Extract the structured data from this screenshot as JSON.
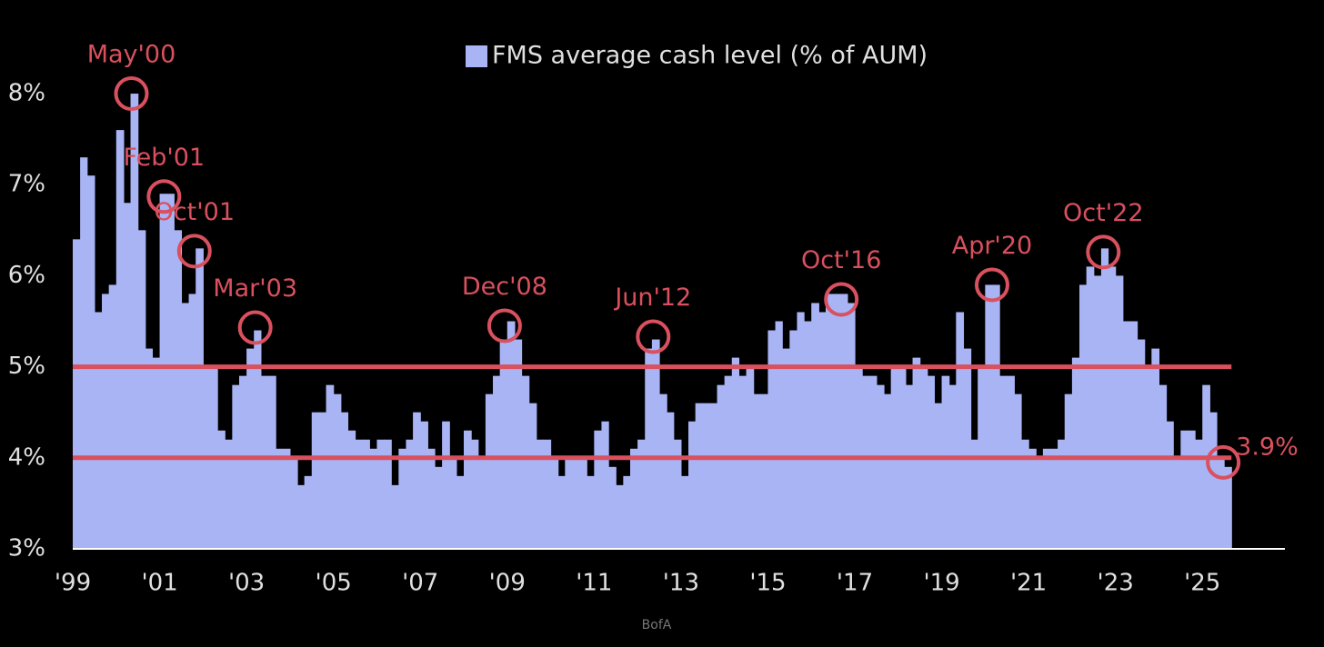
{
  "chart_data": {
    "type": "bar",
    "legend": "FMS average cash level (% of AUM)",
    "color": "#a9b4f5",
    "source": "BofA",
    "x": [
      1999,
      1999.17,
      1999.33,
      1999.5,
      1999.67,
      1999.83,
      2000,
      2000.17,
      2000.33,
      2000.5,
      2000.67,
      2000.83,
      2001,
      2001.17,
      2001.33,
      2001.5,
      2001.67,
      2001.83,
      2002,
      2002.17,
      2002.33,
      2002.5,
      2002.67,
      2002.83,
      2003,
      2003.17,
      2003.33,
      2003.5,
      2003.67,
      2003.83,
      2004,
      2004.17,
      2004.33,
      2004.5,
      2004.67,
      2004.83,
      2005,
      2005.17,
      2005.33,
      2005.5,
      2005.67,
      2005.83,
      2006,
      2006.17,
      2006.33,
      2006.5,
      2006.67,
      2006.83,
      2007,
      2007.17,
      2007.33,
      2007.5,
      2007.67,
      2007.83,
      2008,
      2008.17,
      2008.33,
      2008.5,
      2008.67,
      2008.83,
      2009,
      2009.17,
      2009.33,
      2009.5,
      2009.67,
      2009.83,
      2010,
      2010.17,
      2010.33,
      2010.5,
      2010.67,
      2010.83,
      2011,
      2011.17,
      2011.33,
      2011.5,
      2011.67,
      2011.83,
      2012,
      2012.17,
      2012.33,
      2012.5,
      2012.67,
      2012.83,
      2013,
      2013.17,
      2013.33,
      2013.5,
      2013.67,
      2013.83,
      2014,
      2014.17,
      2014.33,
      2014.5,
      2014.67,
      2014.83,
      2015,
      2015.17,
      2015.33,
      2015.5,
      2015.67,
      2015.83,
      2016,
      2016.17,
      2016.33,
      2016.5,
      2016.67,
      2016.83,
      2017,
      2017.17,
      2017.33,
      2017.5,
      2017.67,
      2017.83,
      2018,
      2018.17,
      2018.33,
      2018.5,
      2018.67,
      2018.83,
      2019,
      2019.17,
      2019.33,
      2019.5,
      2019.67,
      2019.83,
      2020,
      2020.17,
      2020.33,
      2020.5,
      2020.67,
      2020.83,
      2021,
      2021.17,
      2021.33,
      2021.5,
      2021.67,
      2021.83,
      2022,
      2022.17,
      2022.33,
      2022.5,
      2022.67,
      2022.83,
      2023,
      2023.17,
      2023.33,
      2023.5,
      2023.67,
      2023.83,
      2024,
      2024.17,
      2024.33,
      2024.5,
      2024.67,
      2024.83,
      2025,
      2025.17,
      2025.33,
      2025.5
    ],
    "values": [
      6.4,
      7.3,
      7.1,
      5.6,
      5.8,
      5.9,
      7.6,
      6.8,
      8.0,
      6.5,
      5.2,
      5.1,
      6.9,
      6.9,
      6.5,
      5.7,
      5.8,
      6.3,
      5.0,
      5.0,
      4.3,
      4.2,
      4.8,
      4.9,
      5.2,
      5.4,
      4.9,
      4.9,
      4.1,
      4.1,
      4.0,
      3.7,
      3.8,
      4.5,
      4.5,
      4.8,
      4.7,
      4.5,
      4.3,
      4.2,
      4.2,
      4.1,
      4.2,
      4.2,
      3.7,
      4.1,
      4.2,
      4.5,
      4.4,
      4.1,
      3.9,
      4.4,
      4.0,
      3.8,
      4.3,
      4.2,
      4.0,
      4.7,
      4.9,
      5.3,
      5.5,
      5.3,
      4.9,
      4.6,
      4.2,
      4.2,
      4.0,
      3.8,
      4.0,
      4.0,
      4.0,
      3.8,
      4.3,
      4.4,
      3.9,
      3.7,
      3.8,
      4.1,
      4.2,
      5.2,
      5.3,
      4.7,
      4.5,
      4.2,
      3.8,
      4.4,
      4.6,
      4.6,
      4.6,
      4.8,
      4.9,
      5.1,
      4.9,
      5.0,
      4.7,
      4.7,
      5.4,
      5.5,
      5.2,
      5.4,
      5.6,
      5.5,
      5.7,
      5.6,
      5.8,
      5.8,
      5.8,
      5.7,
      5.0,
      4.9,
      4.9,
      4.8,
      4.7,
      5.0,
      5.0,
      4.8,
      5.1,
      5.0,
      4.9,
      4.6,
      4.9,
      4.8,
      5.6,
      5.2,
      4.2,
      5.0,
      5.9,
      5.9,
      4.9,
      4.9,
      4.7,
      4.2,
      4.1,
      4.0,
      4.1,
      4.1,
      4.2,
      4.7,
      5.1,
      5.9,
      6.1,
      6.0,
      6.3,
      6.1,
      6.0,
      5.5,
      5.5,
      5.3,
      5.0,
      5.2,
      4.8,
      4.4,
      4.0,
      4.3,
      4.3,
      4.2,
      4.8,
      4.5,
      4.0,
      3.9
    ],
    "xlim": [
      1999,
      2026.9
    ],
    "ylim": [
      3,
      8.2
    ],
    "yticks": [
      {
        "value": 3,
        "label": "3%"
      },
      {
        "value": 4,
        "label": "4%"
      },
      {
        "value": 5,
        "label": "5%"
      },
      {
        "value": 6,
        "label": "6%"
      },
      {
        "value": 7,
        "label": "7%"
      },
      {
        "value": 8,
        "label": "8%"
      }
    ],
    "xticks": [
      {
        "value": 1999,
        "label": "'99"
      },
      {
        "value": 2001,
        "label": "'01"
      },
      {
        "value": 2003,
        "label": "'03"
      },
      {
        "value": 2005,
        "label": "'05"
      },
      {
        "value": 2007,
        "label": "'07"
      },
      {
        "value": 2009,
        "label": "'09"
      },
      {
        "value": 2011,
        "label": "'11"
      },
      {
        "value": 2013,
        "label": "'13"
      },
      {
        "value": 2015,
        "label": "'15"
      },
      {
        "value": 2017,
        "label": "'17"
      },
      {
        "value": 2019,
        "label": "'19"
      },
      {
        "value": 2021,
        "label": "'21"
      },
      {
        "value": 2023,
        "label": "'23"
      },
      {
        "value": 2025,
        "label": "'25"
      }
    ],
    "reference_lines": [
      5,
      4
    ],
    "reference_color": "#d9505e",
    "annotations": [
      {
        "text": "May'00",
        "x": 2000.35,
        "y": 8.0
      },
      {
        "text": "Feb'01",
        "x": 2001.1,
        "y": 6.87
      },
      {
        "text": "Oct'01",
        "x": 2001.8,
        "y": 6.27
      },
      {
        "text": "Mar'03",
        "x": 2003.2,
        "y": 5.43
      },
      {
        "text": "Dec'08",
        "x": 2008.94,
        "y": 5.45
      },
      {
        "text": "Jun'12",
        "x": 2012.36,
        "y": 5.33
      },
      {
        "text": "Oct'16",
        "x": 2016.69,
        "y": 5.74
      },
      {
        "text": "Apr'20",
        "x": 2020.16,
        "y": 5.9
      },
      {
        "text": "Oct'22",
        "x": 2022.72,
        "y": 6.26
      },
      {
        "text": "3.9%",
        "x": 2025.48,
        "y": 3.95
      }
    ]
  }
}
